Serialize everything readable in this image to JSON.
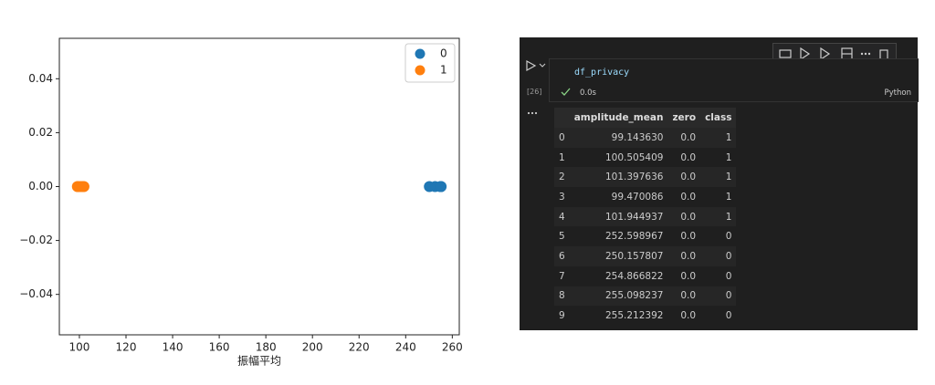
{
  "chart_data": {
    "type": "scatter",
    "xlabel": "振幅平均",
    "series": [
      {
        "name": "0",
        "color": "#1f77b4",
        "x": [
          252.598967,
          250.157807,
          254.866822,
          255.098237,
          255.212392
        ],
        "values": [
          0,
          0,
          0,
          0,
          0
        ]
      },
      {
        "name": "1",
        "color": "#ff7f0e",
        "x": [
          99.14363,
          100.505409,
          101.397636,
          99.470086,
          101.944937
        ],
        "values": [
          0,
          0,
          0,
          0,
          0
        ]
      }
    ],
    "xlim": [
      91.4,
      263
    ],
    "ylim": [
      -0.055,
      0.055
    ],
    "xticks": [
      100,
      120,
      140,
      160,
      180,
      200,
      220,
      240,
      260
    ],
    "yticks": [
      {
        "value": -0.04,
        "label": "−0.04"
      },
      {
        "value": -0.02,
        "label": "−0.02"
      },
      {
        "value": 0,
        "label": "0.00"
      },
      0.02,
      0.04
    ],
    "grid": false,
    "legend": "upper right"
  },
  "notebook": {
    "execution_count": "[26]",
    "code": "df_privacy",
    "duration": "0.0s",
    "language": "Python",
    "table": {
      "columns": [
        "",
        "amplitude_mean",
        "zero",
        "class"
      ],
      "rows": [
        [
          "0",
          "99.143630",
          "0.0",
          "1"
        ],
        [
          "1",
          "100.505409",
          "0.0",
          "1"
        ],
        [
          "2",
          "101.397636",
          "0.0",
          "1"
        ],
        [
          "3",
          "99.470086",
          "0.0",
          "1"
        ],
        [
          "4",
          "101.944937",
          "0.0",
          "1"
        ],
        [
          "5",
          "252.598967",
          "0.0",
          "0"
        ],
        [
          "6",
          "250.157807",
          "0.0",
          "0"
        ],
        [
          "7",
          "254.866822",
          "0.0",
          "0"
        ],
        [
          "8",
          "255.098237",
          "0.0",
          "0"
        ],
        [
          "9",
          "255.212392",
          "0.0",
          "0"
        ]
      ]
    }
  }
}
